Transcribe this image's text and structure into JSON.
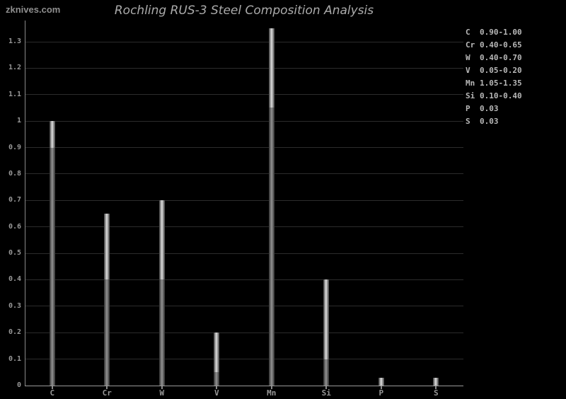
{
  "site_label": "zknives.com",
  "title": "Rochling RUS-3 Steel Composition Analysis",
  "colors": {
    "background": "#000000",
    "title_text": "#ababab",
    "site_label_text": "#8f8f8f",
    "axis": "#9a9a9a",
    "gridline": "#2c2c2c",
    "tick_label": "#989898",
    "legend_text": "#b8b8b8",
    "bar_bright_center": "#dedede",
    "bar_bright_edge": "#3a3a3a",
    "bar_dim_center": "#939393",
    "bar_dim_edge": "#2e2e2e"
  },
  "chart_data": {
    "type": "bar",
    "title": "Rochling RUS-3 Steel Composition Analysis",
    "categories": [
      "C",
      "Cr",
      "W",
      "V",
      "Mn",
      "Si",
      "P",
      "S"
    ],
    "series": [
      {
        "name": "range_min",
        "values": [
          0.9,
          0.4,
          0.4,
          0.05,
          1.05,
          0.1,
          0.0,
          0.0
        ]
      },
      {
        "name": "range_max",
        "values": [
          1.0,
          0.65,
          0.7,
          0.2,
          1.35,
          0.4,
          0.03,
          0.03
        ]
      }
    ],
    "xlabel": "",
    "ylabel": "",
    "ylim": [
      0,
      1.35
    ],
    "ytick_values": [
      0,
      0.1,
      0.2,
      0.3,
      0.4,
      0.5,
      0.6,
      0.7,
      0.8,
      0.9,
      1.0,
      1.1,
      1.2,
      1.3
    ],
    "ytick_labels": [
      "0",
      "0.1",
      "0.2",
      "0.3",
      "0.4",
      "0.5",
      "0.6",
      "0.7",
      "0.8",
      "0.9",
      "1",
      "1.1",
      "1.2",
      "1.3"
    ],
    "grid": true,
    "legend_position": "right",
    "legend": [
      {
        "symbol": "C",
        "value": "0.90-1.00"
      },
      {
        "symbol": "Cr",
        "value": "0.40-0.65"
      },
      {
        "symbol": "W",
        "value": "0.40-0.70"
      },
      {
        "symbol": "V",
        "value": "0.05-0.20"
      },
      {
        "symbol": "Mn",
        "value": "1.05-1.35"
      },
      {
        "symbol": "Si",
        "value": "0.10-0.40"
      },
      {
        "symbol": "P",
        "value": "0.03"
      },
      {
        "symbol": "S",
        "value": "0.03"
      }
    ]
  }
}
